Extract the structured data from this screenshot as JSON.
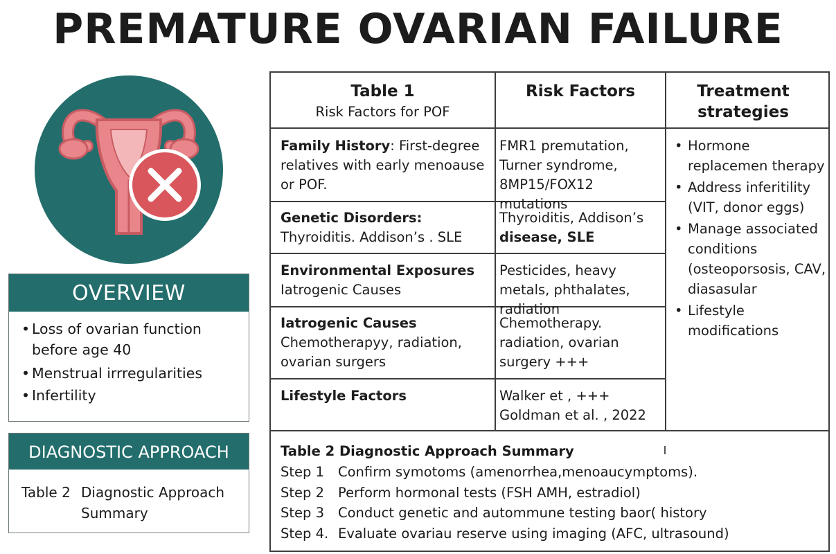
{
  "title": "PREMATURE OVARIAN FAILURE",
  "colors": {
    "teal": "#236e6c",
    "uterus": "#e8868b",
    "cross_circle": "#d9575c",
    "cross": "#ffffff"
  },
  "emblem": {
    "icon": "uterus-with-cross-icon"
  },
  "overview": {
    "heading": "OVERVIEW",
    "items": [
      "Loss of ovarian function before age 40",
      "Menstrual irrregularities",
      "Infertility"
    ]
  },
  "diagnostic": {
    "heading": "DIAGNOSTIC APPROACH",
    "label": "Table 2",
    "value": "Diagnostic Approach Summary"
  },
  "table1": {
    "col1_title": "Table 1",
    "col1_subtitle": "Risk Factors for POF",
    "col2_title": "Risk Factors",
    "col3_title": "Treatment strategies",
    "rows": [
      {
        "cat": "Family History",
        "cat_rest": ": First-degree relatives with early menoause or POF.",
        "risk": "FMR1 premutation, Turner syndrome, 8MP15/FOX12 mutations"
      },
      {
        "cat": "Genetic Disorders:",
        "cat_rest": "Thyroiditis. Addison’s . SLE",
        "risk": "Thyroiditis, Addison’s",
        "risk_bold": "disease, SLE"
      },
      {
        "cat": "Environmental Exposures",
        "cat_rest": "Iatrogenic Causes",
        "risk": "Pesticides, heavy metals, phthalates, radiation"
      },
      {
        "cat": "Iatrogenic Causes",
        "cat_rest": "Chemotherapyy, radiation, ovarian surgers",
        "risk": "Chemotherapy. radiation, ovarian surgery +++"
      },
      {
        "cat": "Lifestyle Factors",
        "cat_rest": "",
        "risk": "Walker et , +++",
        "risk2": "Goldman et al. , 2022"
      }
    ],
    "treatments": [
      "Hormone replacemen therapy",
      "Address inferitility (VIT, donor eggs)",
      "Manage associated conditions (osteoporsosis, CAV, diasasular",
      "Lifestyle modifications"
    ]
  },
  "table2": {
    "title": "Table 2  Diagnostic Approach Summary",
    "steps": [
      {
        "label": "Step 1",
        "text": "Confirm symotoms  (amenorrhea,menoaucymptoms)."
      },
      {
        "label": "Step 2",
        "text": "Perform hormonal tests (FSH AMH, estradiol)"
      },
      {
        "label": "Step 3",
        "text": "Conduct genetic and autommune testing baor( history"
      },
      {
        "label": "Step 4.",
        "text": "Evaluate ovariau reserve using imaging (AFC, ultrasound)"
      }
    ]
  }
}
